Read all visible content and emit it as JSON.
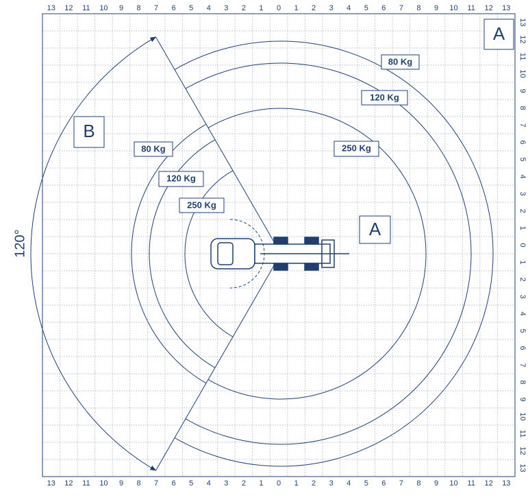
{
  "grid": {
    "top_labels": [
      13,
      12,
      11,
      10,
      9,
      8,
      7,
      6,
      5,
      4,
      3,
      2,
      1,
      0,
      1,
      2,
      3,
      4,
      5,
      6,
      7,
      8,
      9,
      10,
      11,
      12,
      13
    ],
    "bottom_labels": [
      13,
      12,
      11,
      10,
      9,
      8,
      7,
      6,
      5,
      4,
      3,
      2,
      1,
      0,
      1,
      2,
      3,
      4,
      5,
      6,
      7,
      8,
      9,
      10,
      11,
      12,
      13
    ],
    "right_labels": [
      13,
      12,
      11,
      10,
      9,
      8,
      7,
      6,
      5,
      4,
      3,
      2,
      1,
      0,
      1,
      2,
      3,
      4,
      5,
      6,
      7,
      8,
      9,
      10,
      11,
      12,
      13
    ]
  },
  "zones": {
    "corner": "A",
    "front": "A",
    "side": "B"
  },
  "rotation_angle": "120°",
  "loads_zone_a": [
    "80 Kg",
    "120 Kg",
    "250 Kg"
  ],
  "loads_zone_b": [
    "80 Kg",
    "120 Kg",
    "250 Kg"
  ]
}
